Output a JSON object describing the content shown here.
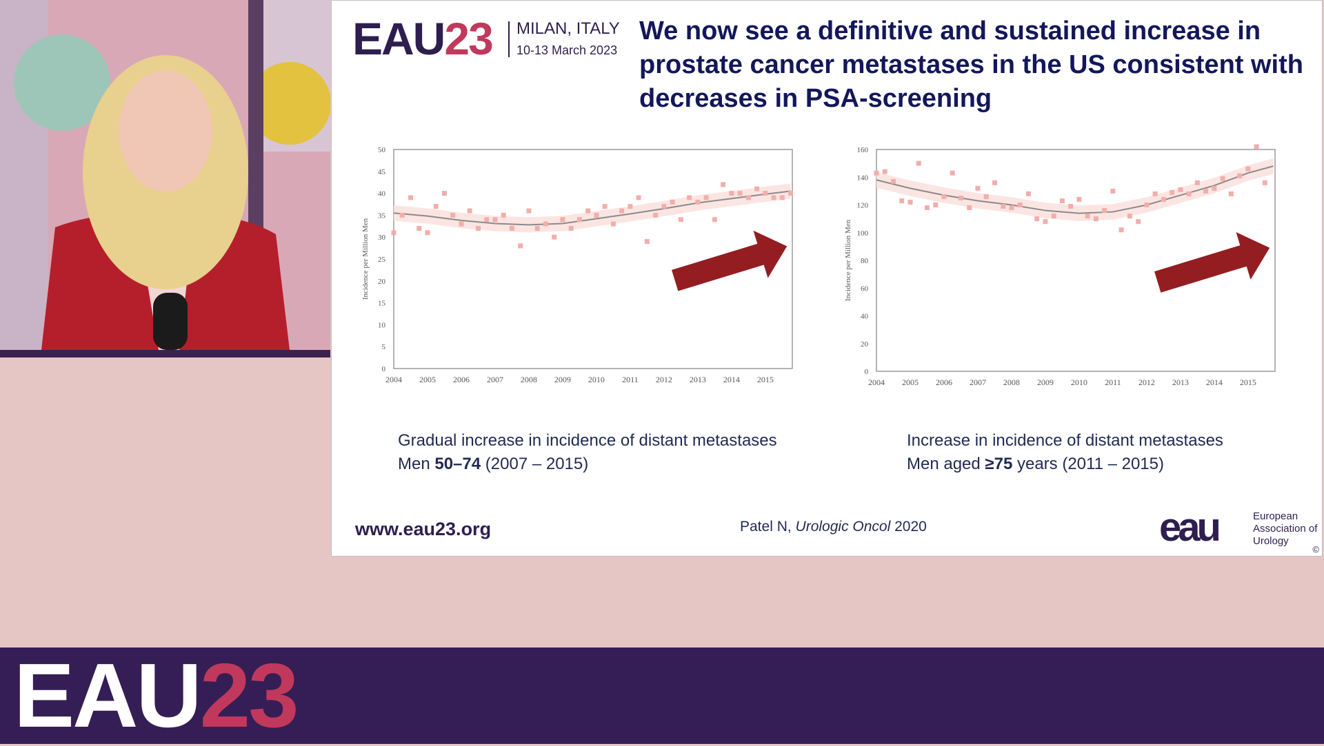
{
  "slide": {
    "logo": {
      "eau": "EAU",
      "year": "23",
      "city": "MILAN, ITALY",
      "dates": "10-13 March 2023"
    },
    "title": "We now see a definitive and sustained increase in prostate cancer metastases in the US consistent with decreases in PSA-screening",
    "left_caption": {
      "line1": "Gradual increase in incidence of distant metastases",
      "line2_prefix": "Men ",
      "line2_bold": "50–74",
      "line2_suffix": " (2007 – 2015)"
    },
    "right_caption": {
      "line1": "Increase in incidence of distant metastases",
      "line2_prefix": "Men aged ",
      "line2_bold": "≥75",
      "line2_suffix": " years (2011 – 2015)"
    },
    "website": "www.eau23.org",
    "citation": {
      "author": "Patel N, ",
      "journal": "Urologic Oncol",
      "year": " 2020"
    },
    "brand": {
      "mark": "eau",
      "name": "European Association of Urology"
    },
    "copyright": "©"
  },
  "banner": {
    "eau": "EAU",
    "year": "23"
  },
  "colors": {
    "marker": "#f2aeaa",
    "trend": "#8a8a8a",
    "band": "#fbe2df",
    "arrow": "#941d22",
    "title": "#13175a",
    "banner": "#351e55",
    "accent": "#c0395c"
  },
  "chart_data": [
    {
      "type": "scatter",
      "ylabel": "Incidence per Million Men",
      "ylim": [
        0,
        50
      ],
      "yticks": [
        0,
        5,
        10,
        15,
        20,
        25,
        30,
        35,
        40,
        45,
        50
      ],
      "xticks": [
        "2004",
        "2005",
        "2006",
        "2007",
        "2008",
        "2009",
        "2010",
        "2011",
        "2012",
        "2013",
        "2014",
        "2015"
      ],
      "xlim": [
        2004.0,
        2015.8
      ],
      "points": [
        [
          2004.0,
          31
        ],
        [
          2004.25,
          35
        ],
        [
          2004.5,
          39
        ],
        [
          2004.75,
          32
        ],
        [
          2005.0,
          31
        ],
        [
          2005.25,
          37
        ],
        [
          2005.5,
          40
        ],
        [
          2005.75,
          35
        ],
        [
          2006.0,
          33
        ],
        [
          2006.25,
          36
        ],
        [
          2006.5,
          32
        ],
        [
          2006.75,
          34
        ],
        [
          2007.0,
          34
        ],
        [
          2007.25,
          35
        ],
        [
          2007.5,
          32
        ],
        [
          2007.75,
          28
        ],
        [
          2008.0,
          36
        ],
        [
          2008.25,
          32
        ],
        [
          2008.5,
          33
        ],
        [
          2008.75,
          30
        ],
        [
          2009.0,
          34
        ],
        [
          2009.25,
          32
        ],
        [
          2009.5,
          34
        ],
        [
          2009.75,
          36
        ],
        [
          2010.0,
          35
        ],
        [
          2010.25,
          37
        ],
        [
          2010.5,
          33
        ],
        [
          2010.75,
          36
        ],
        [
          2011.0,
          37
        ],
        [
          2011.25,
          39
        ],
        [
          2011.5,
          29
        ],
        [
          2011.75,
          35
        ],
        [
          2012.0,
          37
        ],
        [
          2012.25,
          38
        ],
        [
          2012.5,
          34
        ],
        [
          2012.75,
          39
        ],
        [
          2013.0,
          38
        ],
        [
          2013.25,
          39
        ],
        [
          2013.5,
          34
        ],
        [
          2013.75,
          42
        ],
        [
          2014.0,
          40
        ],
        [
          2014.25,
          40
        ],
        [
          2014.5,
          39
        ],
        [
          2014.75,
          41
        ],
        [
          2015.0,
          40
        ],
        [
          2015.25,
          39
        ],
        [
          2015.5,
          39
        ],
        [
          2015.75,
          40
        ]
      ],
      "trend": [
        [
          2004.0,
          35.5
        ],
        [
          2005.0,
          34.8
        ],
        [
          2006.0,
          33.8
        ],
        [
          2007.0,
          33.1
        ],
        [
          2008.0,
          32.8
        ],
        [
          2009.0,
          33.1
        ],
        [
          2010.0,
          34.2
        ],
        [
          2011.0,
          35.3
        ],
        [
          2012.0,
          36.5
        ],
        [
          2013.0,
          37.8
        ],
        [
          2014.0,
          38.8
        ],
        [
          2015.0,
          39.8
        ],
        [
          2015.75,
          40.5
        ]
      ],
      "arrow": "up-right"
    },
    {
      "type": "scatter",
      "ylabel": "Incidence per Million Men",
      "ylim": [
        0,
        160
      ],
      "yticks": [
        0,
        20,
        40,
        60,
        80,
        100,
        120,
        140,
        160
      ],
      "xticks": [
        "2004",
        "2005",
        "2006",
        "2007",
        "2008",
        "2009",
        "2010",
        "2011",
        "2012",
        "2013",
        "2014",
        "2015"
      ],
      "xlim": [
        2004.0,
        2015.8
      ],
      "points": [
        [
          2004.0,
          143
        ],
        [
          2004.25,
          144
        ],
        [
          2004.5,
          137
        ],
        [
          2004.75,
          123
        ],
        [
          2005.0,
          122
        ],
        [
          2005.25,
          150
        ],
        [
          2005.5,
          118
        ],
        [
          2005.75,
          120
        ],
        [
          2006.0,
          126
        ],
        [
          2006.25,
          143
        ],
        [
          2006.5,
          125
        ],
        [
          2006.75,
          118
        ],
        [
          2007.0,
          132
        ],
        [
          2007.25,
          126
        ],
        [
          2007.5,
          136
        ],
        [
          2007.75,
          119
        ],
        [
          2008.0,
          118
        ],
        [
          2008.25,
          120
        ],
        [
          2008.5,
          128
        ],
        [
          2008.75,
          110
        ],
        [
          2009.0,
          108
        ],
        [
          2009.25,
          112
        ],
        [
          2009.5,
          123
        ],
        [
          2009.75,
          119
        ],
        [
          2010.0,
          124
        ],
        [
          2010.25,
          112
        ],
        [
          2010.5,
          110
        ],
        [
          2010.75,
          116
        ],
        [
          2011.0,
          130
        ],
        [
          2011.25,
          102
        ],
        [
          2011.5,
          112
        ],
        [
          2011.75,
          108
        ],
        [
          2012.0,
          120
        ],
        [
          2012.25,
          128
        ],
        [
          2012.5,
          124
        ],
        [
          2012.75,
          129
        ],
        [
          2013.0,
          131
        ],
        [
          2013.25,
          128
        ],
        [
          2013.5,
          136
        ],
        [
          2013.75,
          130
        ],
        [
          2014.0,
          132
        ],
        [
          2014.25,
          139
        ],
        [
          2014.5,
          128
        ],
        [
          2014.75,
          141
        ],
        [
          2015.0,
          146
        ],
        [
          2015.25,
          162
        ],
        [
          2015.5,
          136
        ]
      ],
      "trend": [
        [
          2004.0,
          138
        ],
        [
          2005.0,
          132
        ],
        [
          2006.0,
          127
        ],
        [
          2007.0,
          123
        ],
        [
          2008.0,
          120
        ],
        [
          2009.0,
          116
        ],
        [
          2010.0,
          114
        ],
        [
          2011.0,
          115
        ],
        [
          2012.0,
          120
        ],
        [
          2013.0,
          127
        ],
        [
          2014.0,
          134
        ],
        [
          2015.0,
          143
        ],
        [
          2015.75,
          148
        ]
      ],
      "arrow": "up-right"
    }
  ]
}
